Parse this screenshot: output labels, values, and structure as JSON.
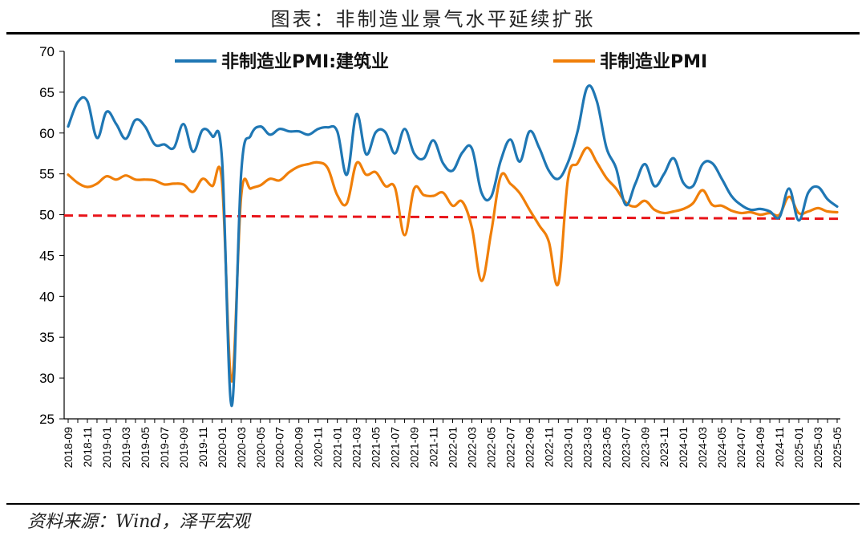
{
  "header": {
    "title": "图表：非制造业景气水平延续扩张"
  },
  "footer": {
    "source": "资料来源：Wind，泽平宏观"
  },
  "chart_data": {
    "type": "line",
    "title": "图表：非制造业景气水平延续扩张",
    "ylim": [
      25,
      70
    ],
    "yticks": [
      25,
      30,
      35,
      40,
      45,
      50,
      55,
      60,
      65,
      70
    ],
    "legend_position": "top",
    "x_tick_labels": [
      "2018-09",
      "2018-11",
      "2019-01",
      "2019-03",
      "2019-05",
      "2019-07",
      "2019-09",
      "2019-11",
      "2020-01",
      "2020-03",
      "2020-05",
      "2020-07",
      "2020-09",
      "2020-11",
      "2021-01",
      "2021-03",
      "2021-05",
      "2021-07",
      "2021-09",
      "2021-11",
      "2022-01",
      "2022-03",
      "2022-05",
      "2022-07",
      "2022-09",
      "2022-11",
      "2023-01",
      "2023-03",
      "2023-05",
      "2023-07",
      "2023-09",
      "2023-11",
      "2024-01",
      "2024-03",
      "2024-05",
      "2024-07",
      "2024-09",
      "2024-11",
      "2025-01",
      "2025-03",
      "2025-05"
    ],
    "x": [
      "2018-09",
      "2018-10",
      "2018-11",
      "2018-12",
      "2019-01",
      "2019-02",
      "2019-03",
      "2019-04",
      "2019-05",
      "2019-06",
      "2019-07",
      "2019-08",
      "2019-09",
      "2019-10",
      "2019-11",
      "2019-12",
      "2020-01",
      "2020-02",
      "2020-03",
      "2020-04",
      "2020-05",
      "2020-06",
      "2020-07",
      "2020-08",
      "2020-09",
      "2020-10",
      "2020-11",
      "2020-12",
      "2021-01",
      "2021-02",
      "2021-03",
      "2021-04",
      "2021-05",
      "2021-06",
      "2021-07",
      "2021-08",
      "2021-09",
      "2021-10",
      "2021-11",
      "2021-12",
      "2022-01",
      "2022-02",
      "2022-03",
      "2022-04",
      "2022-05",
      "2022-06",
      "2022-07",
      "2022-08",
      "2022-09",
      "2022-10",
      "2022-11",
      "2022-12",
      "2023-01",
      "2023-02",
      "2023-03",
      "2023-04",
      "2023-05",
      "2023-06",
      "2023-07",
      "2023-08",
      "2023-09",
      "2023-10",
      "2023-11",
      "2023-12",
      "2024-01",
      "2024-02",
      "2024-03",
      "2024-04",
      "2024-05",
      "2024-06",
      "2024-07",
      "2024-08",
      "2024-09",
      "2024-10",
      "2024-11",
      "2024-12",
      "2025-01",
      "2025-02",
      "2025-03",
      "2025-04",
      "2025-05"
    ],
    "series": [
      {
        "name": "非制造业PMI:建筑业",
        "color": "#1f77b4",
        "values": [
          60.8,
          63.8,
          63.9,
          59.4,
          62.6,
          61.1,
          59.3,
          61.6,
          60.8,
          58.6,
          58.6,
          58.2,
          61.1,
          57.7,
          60.4,
          59.6,
          56.9,
          26.6,
          55.1,
          59.7,
          60.8,
          59.8,
          60.5,
          60.2,
          60.2,
          59.8,
          60.5,
          60.7,
          60.2,
          54.9,
          62.3,
          57.4,
          60.1,
          60.1,
          57.5,
          60.5,
          57.5,
          56.9,
          59.1,
          56.3,
          55.4,
          57.6,
          58.1,
          52.7,
          52.2,
          56.6,
          59.2,
          56.5,
          60.2,
          58.2,
          55.4,
          54.4,
          56.4,
          60.2,
          65.6,
          63.9,
          58.2,
          55.7,
          51.2,
          53.8,
          56.2,
          53.5,
          55.0,
          56.9,
          53.9,
          53.5,
          56.2,
          56.3,
          54.4,
          52.3,
          51.2,
          50.6,
          50.7,
          50.4,
          49.7,
          53.2,
          49.3,
          52.7,
          53.4,
          51.9,
          51.0
        ]
      },
      {
        "name": "非制造业PMI",
        "color": "#f07f09",
        "values": [
          54.9,
          53.9,
          53.4,
          53.8,
          54.7,
          54.3,
          54.8,
          54.3,
          54.3,
          54.2,
          53.7,
          53.8,
          53.7,
          52.8,
          54.4,
          53.5,
          54.1,
          29.6,
          52.3,
          53.2,
          53.6,
          54.4,
          54.2,
          55.2,
          55.9,
          56.2,
          56.4,
          55.7,
          52.4,
          51.4,
          56.3,
          54.9,
          55.2,
          53.5,
          53.3,
          47.5,
          53.2,
          52.4,
          52.3,
          52.7,
          51.1,
          51.6,
          48.4,
          41.9,
          47.8,
          54.7,
          53.8,
          52.6,
          50.6,
          48.7,
          46.7,
          41.6,
          54.4,
          56.3,
          58.2,
          56.4,
          54.5,
          53.2,
          51.5,
          51.0,
          51.7,
          50.6,
          50.2,
          50.4,
          50.7,
          51.4,
          53.0,
          51.2,
          51.1,
          50.5,
          50.2,
          50.3,
          50.0,
          50.2,
          50.0,
          52.2,
          50.2,
          50.4,
          50.8,
          50.4,
          50.3
        ]
      }
    ],
    "reference_line": {
      "y": [
        49.9,
        49.5
      ],
      "color": "#e8141a",
      "style": "dashed"
    }
  }
}
